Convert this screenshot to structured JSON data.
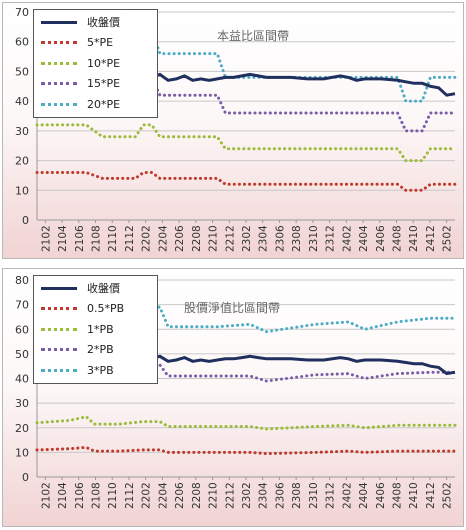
{
  "chart_data": [
    {
      "type": "line",
      "title": "本益比區間帶",
      "categories": [
        "2102",
        "2104",
        "2106",
        "2108",
        "2110",
        "2112",
        "2202",
        "2204",
        "2206",
        "2208",
        "2210",
        "2212",
        "2302",
        "2304",
        "2306",
        "2308",
        "2310",
        "2312",
        "2402",
        "2404",
        "2406",
        "2408",
        "2410",
        "2412",
        "2502"
      ],
      "ylim": [
        0,
        70
      ],
      "yticks": [
        0,
        10,
        20,
        30,
        40,
        50,
        60,
        70
      ],
      "grid": true,
      "legend": "top-left",
      "x_range": [
        2020.917,
        2025.167
      ],
      "series": [
        {
          "name": "收盤價",
          "style": "solid",
          "color": "#1f2f5e",
          "x": [
            2020.917,
            2021.167,
            2021.417,
            2021.667,
            2021.833,
            2021.917,
            2022.0,
            2022.083,
            2022.167,
            2022.25,
            2022.333,
            2022.417,
            2022.5,
            2022.583,
            2022.667,
            2022.75,
            2022.833,
            2022.917,
            2023.0,
            2023.083,
            2023.167,
            2023.25,
            2023.333,
            2023.5,
            2023.667,
            2023.833,
            2024.0,
            2024.083,
            2024.167,
            2024.25,
            2024.417,
            2024.583,
            2024.667,
            2024.75,
            2024.833,
            2024.917,
            2025.0,
            2025.083,
            2025.167
          ],
          "y": [
            47,
            47,
            47,
            47,
            46.5,
            47,
            48.5,
            48,
            49,
            47,
            47.5,
            48.5,
            47,
            47.5,
            47,
            47.5,
            48,
            48,
            48.5,
            49,
            48.5,
            48,
            48,
            48,
            47.5,
            47.5,
            48.5,
            48,
            47,
            47.5,
            47.5,
            47,
            46.5,
            46,
            46,
            45,
            44.5,
            42,
            42.5
          ]
        },
        {
          "name": "5*PE",
          "style": "dotted",
          "color": "#c0392b",
          "x": [
            2020.917,
            2021.417,
            2021.583,
            2021.833,
            2021.917,
            2022.0,
            2022.083,
            2022.167,
            2022.25,
            2022.75,
            2022.833,
            2024.5,
            2024.583,
            2024.667,
            2024.833,
            2024.917,
            2025.167
          ],
          "y": [
            16,
            16,
            14,
            14,
            14,
            16,
            16,
            14,
            14,
            14,
            12,
            12,
            12,
            10,
            10,
            12,
            12
          ]
        },
        {
          "name": "10*PE",
          "style": "dotted",
          "color": "#9bbb3b",
          "x": [
            2020.917,
            2021.417,
            2021.583,
            2021.833,
            2021.917,
            2022.0,
            2022.083,
            2022.167,
            2022.25,
            2022.75,
            2022.833,
            2024.5,
            2024.583,
            2024.667,
            2024.833,
            2024.917,
            2025.167
          ],
          "y": [
            32,
            32,
            28,
            28,
            28,
            32,
            32,
            28,
            28,
            28,
            24,
            24,
            24,
            20,
            20,
            24,
            24
          ]
        },
        {
          "name": "15*PE",
          "style": "dotted",
          "color": "#7b5ca8",
          "x": [
            2020.917,
            2021.417,
            2021.583,
            2021.833,
            2021.917,
            2022.0,
            2022.083,
            2022.167,
            2022.25,
            2022.75,
            2022.833,
            2024.5,
            2024.583,
            2024.667,
            2024.833,
            2024.917,
            2025.167
          ],
          "y": [
            48,
            48,
            42,
            42,
            42,
            48,
            48,
            42,
            42,
            42,
            36,
            36,
            36,
            30,
            30,
            36,
            36
          ]
        },
        {
          "name": "20*PE",
          "style": "dotted",
          "color": "#4bacc6",
          "x": [
            2020.917,
            2021.417,
            2021.583,
            2021.833,
            2021.917,
            2022.0,
            2022.083,
            2022.167,
            2022.25,
            2022.75,
            2022.833,
            2024.5,
            2024.583,
            2024.667,
            2024.833,
            2024.917,
            2025.167
          ],
          "y": [
            64,
            64,
            56,
            56,
            56,
            64,
            64,
            56,
            56,
            56,
            48,
            48,
            48,
            40,
            40,
            48,
            48
          ]
        }
      ]
    },
    {
      "type": "line",
      "title": "股價淨值比區間帶",
      "categories": [
        "2102",
        "2104",
        "2106",
        "2108",
        "2110",
        "2112",
        "2202",
        "2204",
        "2206",
        "2208",
        "2210",
        "2212",
        "2302",
        "2304",
        "2306",
        "2308",
        "2310",
        "2312",
        "2402",
        "2404",
        "2406",
        "2408",
        "2410",
        "2412",
        "2502"
      ],
      "ylim": [
        0,
        80
      ],
      "yticks": [
        0,
        10,
        20,
        30,
        40,
        50,
        60,
        70,
        80
      ],
      "grid": true,
      "legend": "top-left",
      "x_range": [
        2020.917,
        2025.167
      ],
      "series": [
        {
          "name": "收盤價",
          "style": "solid",
          "color": "#1f2f5e",
          "x": [
            2020.917,
            2021.167,
            2021.417,
            2021.667,
            2021.833,
            2021.917,
            2022.0,
            2022.083,
            2022.167,
            2022.25,
            2022.333,
            2022.417,
            2022.5,
            2022.583,
            2022.667,
            2022.75,
            2022.833,
            2022.917,
            2023.0,
            2023.083,
            2023.167,
            2023.25,
            2023.333,
            2023.5,
            2023.667,
            2023.833,
            2024.0,
            2024.083,
            2024.167,
            2024.25,
            2024.417,
            2024.583,
            2024.667,
            2024.75,
            2024.833,
            2024.917,
            2025.0,
            2025.083,
            2025.167
          ],
          "y": [
            47,
            47,
            47,
            47,
            46.5,
            47,
            48.5,
            48,
            49,
            47,
            47.5,
            48.5,
            47,
            47.5,
            47,
            47.5,
            48,
            48,
            48.5,
            49,
            48.5,
            48,
            48,
            48,
            47.5,
            47.5,
            48.5,
            48,
            47,
            47.5,
            47.5,
            47,
            46.5,
            46,
            46,
            45,
            44.5,
            42,
            42.5
          ]
        },
        {
          "name": "0.5*PB",
          "style": "dotted",
          "color": "#c0392b",
          "x": [
            2020.917,
            2021.25,
            2021.417,
            2021.5,
            2021.75,
            2022.0,
            2022.167,
            2022.25,
            2022.75,
            2023.083,
            2023.25,
            2023.75,
            2024.083,
            2024.25,
            2024.583,
            2024.917,
            2025.167
          ],
          "y": [
            11,
            11.5,
            12,
            10.5,
            10.5,
            11,
            11,
            10,
            10,
            10,
            9.5,
            10,
            10.5,
            10,
            10.5,
            10.5,
            10.5
          ]
        },
        {
          "name": "1*PB",
          "style": "dotted",
          "color": "#9bbb3b",
          "x": [
            2020.917,
            2021.25,
            2021.417,
            2021.5,
            2021.75,
            2022.0,
            2022.167,
            2022.25,
            2022.75,
            2023.083,
            2023.25,
            2023.75,
            2024.083,
            2024.25,
            2024.583,
            2024.917,
            2025.167
          ],
          "y": [
            22,
            23,
            24.5,
            21.5,
            21.5,
            22.5,
            22.5,
            20.5,
            20.5,
            20.5,
            19.5,
            20.5,
            21,
            20,
            21,
            21,
            21
          ]
        },
        {
          "name": "2*PB",
          "style": "dotted",
          "color": "#7b5ca8",
          "x": [
            2020.917,
            2021.25,
            2021.417,
            2021.5,
            2021.75,
            2022.0,
            2022.167,
            2022.25,
            2022.75,
            2023.083,
            2023.25,
            2023.75,
            2024.083,
            2024.25,
            2024.583,
            2024.917,
            2025.167
          ],
          "y": [
            45,
            46.5,
            48.5,
            43,
            43,
            45.5,
            45.5,
            41,
            41,
            41,
            39,
            41.5,
            42,
            40,
            42,
            42.5,
            42.5
          ]
        },
        {
          "name": "3*PB",
          "style": "dotted",
          "color": "#4bacc6",
          "x": [
            2020.917,
            2021.25,
            2021.417,
            2021.5,
            2021.75,
            2022.0,
            2022.167,
            2022.25,
            2022.75,
            2023.083,
            2023.25,
            2023.75,
            2024.083,
            2024.25,
            2024.583,
            2024.917,
            2025.167
          ],
          "y": [
            66,
            68,
            71,
            64,
            64,
            69,
            69,
            61,
            61,
            62,
            59,
            62,
            63,
            60,
            63,
            64.5,
            64.5
          ]
        }
      ]
    }
  ]
}
